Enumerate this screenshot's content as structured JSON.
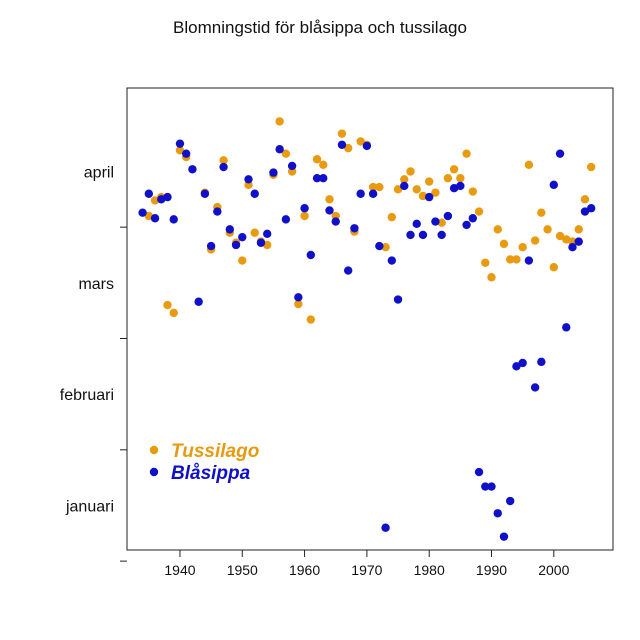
{
  "chart_data": {
    "type": "scatter",
    "title": "Blomningstid för blåsippa och tussilago",
    "xlabel": "",
    "ylabel": "",
    "xlim": [
      1931.5,
      2009.5
    ],
    "ylim": [
      0.6,
      4.75
    ],
    "x_ticks": [
      1940,
      1950,
      1960,
      1970,
      1980,
      1990,
      2000
    ],
    "x_tick_labels": [
      "1940",
      "1950",
      "1960",
      "1970",
      "1980",
      "1990",
      "2000"
    ],
    "y_ticks": [
      1,
      2,
      3,
      4
    ],
    "y_tick_labels": [
      "januari",
      "februari",
      "mars",
      "april"
    ],
    "y_minor_ticks": [
      0.5,
      1.5,
      2.5,
      3.5
    ],
    "grid": false,
    "legend_position": "bottom-left",
    "series": [
      {
        "name": "Tussilago",
        "color": "#e89a10",
        "points": [
          [
            1935,
            3.6
          ],
          [
            1936,
            3.74
          ],
          [
            1937,
            3.77
          ],
          [
            1938,
            2.8
          ],
          [
            1939,
            2.73
          ],
          [
            1940,
            4.19
          ],
          [
            1941,
            4.13
          ],
          [
            1944,
            3.81
          ],
          [
            1945,
            3.3
          ],
          [
            1946,
            3.68
          ],
          [
            1947,
            4.1
          ],
          [
            1948,
            3.45
          ],
          [
            1949,
            3.36
          ],
          [
            1950,
            3.2
          ],
          [
            1951,
            3.88
          ],
          [
            1952,
            3.45
          ],
          [
            1953,
            3.37
          ],
          [
            1954,
            3.34
          ],
          [
            1955,
            3.97
          ],
          [
            1956,
            4.45
          ],
          [
            1957,
            4.16
          ],
          [
            1958,
            4.0
          ],
          [
            1959,
            2.81
          ],
          [
            1960,
            3.6
          ],
          [
            1961,
            2.67
          ],
          [
            1962,
            4.11
          ],
          [
            1963,
            4.06
          ],
          [
            1964,
            3.75
          ],
          [
            1965,
            3.6
          ],
          [
            1966,
            4.34
          ],
          [
            1967,
            4.21
          ],
          [
            1968,
            3.46
          ],
          [
            1969,
            4.27
          ],
          [
            1970,
            4.24
          ],
          [
            1971,
            3.86
          ],
          [
            1972,
            3.86
          ],
          [
            1973,
            3.32
          ],
          [
            1974,
            3.59
          ],
          [
            1975,
            3.84
          ],
          [
            1976,
            3.93
          ],
          [
            1977,
            4.0
          ],
          [
            1978,
            3.84
          ],
          [
            1979,
            3.78
          ],
          [
            1980,
            3.91
          ],
          [
            1981,
            3.81
          ],
          [
            1982,
            3.54
          ],
          [
            1983,
            3.94
          ],
          [
            1984,
            4.02
          ],
          [
            1985,
            3.94
          ],
          [
            1986,
            4.16
          ],
          [
            1987,
            3.82
          ],
          [
            1988,
            3.64
          ],
          [
            1989,
            3.18
          ],
          [
            1990,
            3.05
          ],
          [
            1991,
            3.48
          ],
          [
            1992,
            3.35
          ],
          [
            1993,
            3.21
          ],
          [
            1994,
            3.21
          ],
          [
            1995,
            3.32
          ],
          [
            1996,
            4.06
          ],
          [
            1997,
            3.38
          ],
          [
            1998,
            3.63
          ],
          [
            1999,
            3.48
          ],
          [
            2000,
            3.14
          ],
          [
            2001,
            3.42
          ],
          [
            2002,
            3.39
          ],
          [
            2003,
            3.37
          ],
          [
            2004,
            3.48
          ],
          [
            2005,
            3.75
          ],
          [
            2006,
            4.04
          ]
        ]
      },
      {
        "name": "Blåsippa",
        "color": "#1010c8",
        "points": [
          [
            1934,
            3.63
          ],
          [
            1935,
            3.8
          ],
          [
            1936,
            3.58
          ],
          [
            1937,
            3.75
          ],
          [
            1938,
            3.77
          ],
          [
            1939,
            3.57
          ],
          [
            1940,
            4.25
          ],
          [
            1941,
            4.16
          ],
          [
            1942,
            4.02
          ],
          [
            1943,
            2.83
          ],
          [
            1944,
            3.8
          ],
          [
            1945,
            3.33
          ],
          [
            1946,
            3.64
          ],
          [
            1947,
            4.04
          ],
          [
            1948,
            3.48
          ],
          [
            1949,
            3.34
          ],
          [
            1950,
            3.41
          ],
          [
            1951,
            3.93
          ],
          [
            1952,
            3.8
          ],
          [
            1953,
            3.36
          ],
          [
            1954,
            3.44
          ],
          [
            1955,
            3.99
          ],
          [
            1956,
            4.2
          ],
          [
            1957,
            3.57
          ],
          [
            1958,
            4.05
          ],
          [
            1959,
            2.87
          ],
          [
            1960,
            3.67
          ],
          [
            1961,
            3.25
          ],
          [
            1962,
            3.94
          ],
          [
            1963,
            3.94
          ],
          [
            1964,
            3.65
          ],
          [
            1965,
            3.55
          ],
          [
            1966,
            4.24
          ],
          [
            1967,
            3.11
          ],
          [
            1968,
            3.49
          ],
          [
            1969,
            3.8
          ],
          [
            1970,
            4.23
          ],
          [
            1971,
            3.8
          ],
          [
            1972,
            3.33
          ],
          [
            1973,
            0.8
          ],
          [
            1974,
            3.2
          ],
          [
            1975,
            2.85
          ],
          [
            1976,
            3.87
          ],
          [
            1977,
            3.43
          ],
          [
            1978,
            3.53
          ],
          [
            1979,
            3.43
          ],
          [
            1980,
            3.77
          ],
          [
            1981,
            3.55
          ],
          [
            1982,
            3.43
          ],
          [
            1983,
            3.6
          ],
          [
            1984,
            3.85
          ],
          [
            1985,
            3.87
          ],
          [
            1986,
            3.52
          ],
          [
            1987,
            3.58
          ],
          [
            1988,
            1.3
          ],
          [
            1989,
            1.17
          ],
          [
            1990,
            1.17
          ],
          [
            1991,
            0.93
          ],
          [
            1992,
            0.72
          ],
          [
            1993,
            1.04
          ],
          [
            1994,
            2.25
          ],
          [
            1995,
            2.28
          ],
          [
            1996,
            3.2
          ],
          [
            1997,
            2.06
          ],
          [
            1998,
            2.29
          ],
          [
            2000,
            3.88
          ],
          [
            2001,
            4.16
          ],
          [
            2002,
            2.6
          ],
          [
            2003,
            3.32
          ],
          [
            2004,
            3.37
          ],
          [
            2005,
            3.64
          ],
          [
            2006,
            3.67
          ]
        ]
      }
    ]
  }
}
